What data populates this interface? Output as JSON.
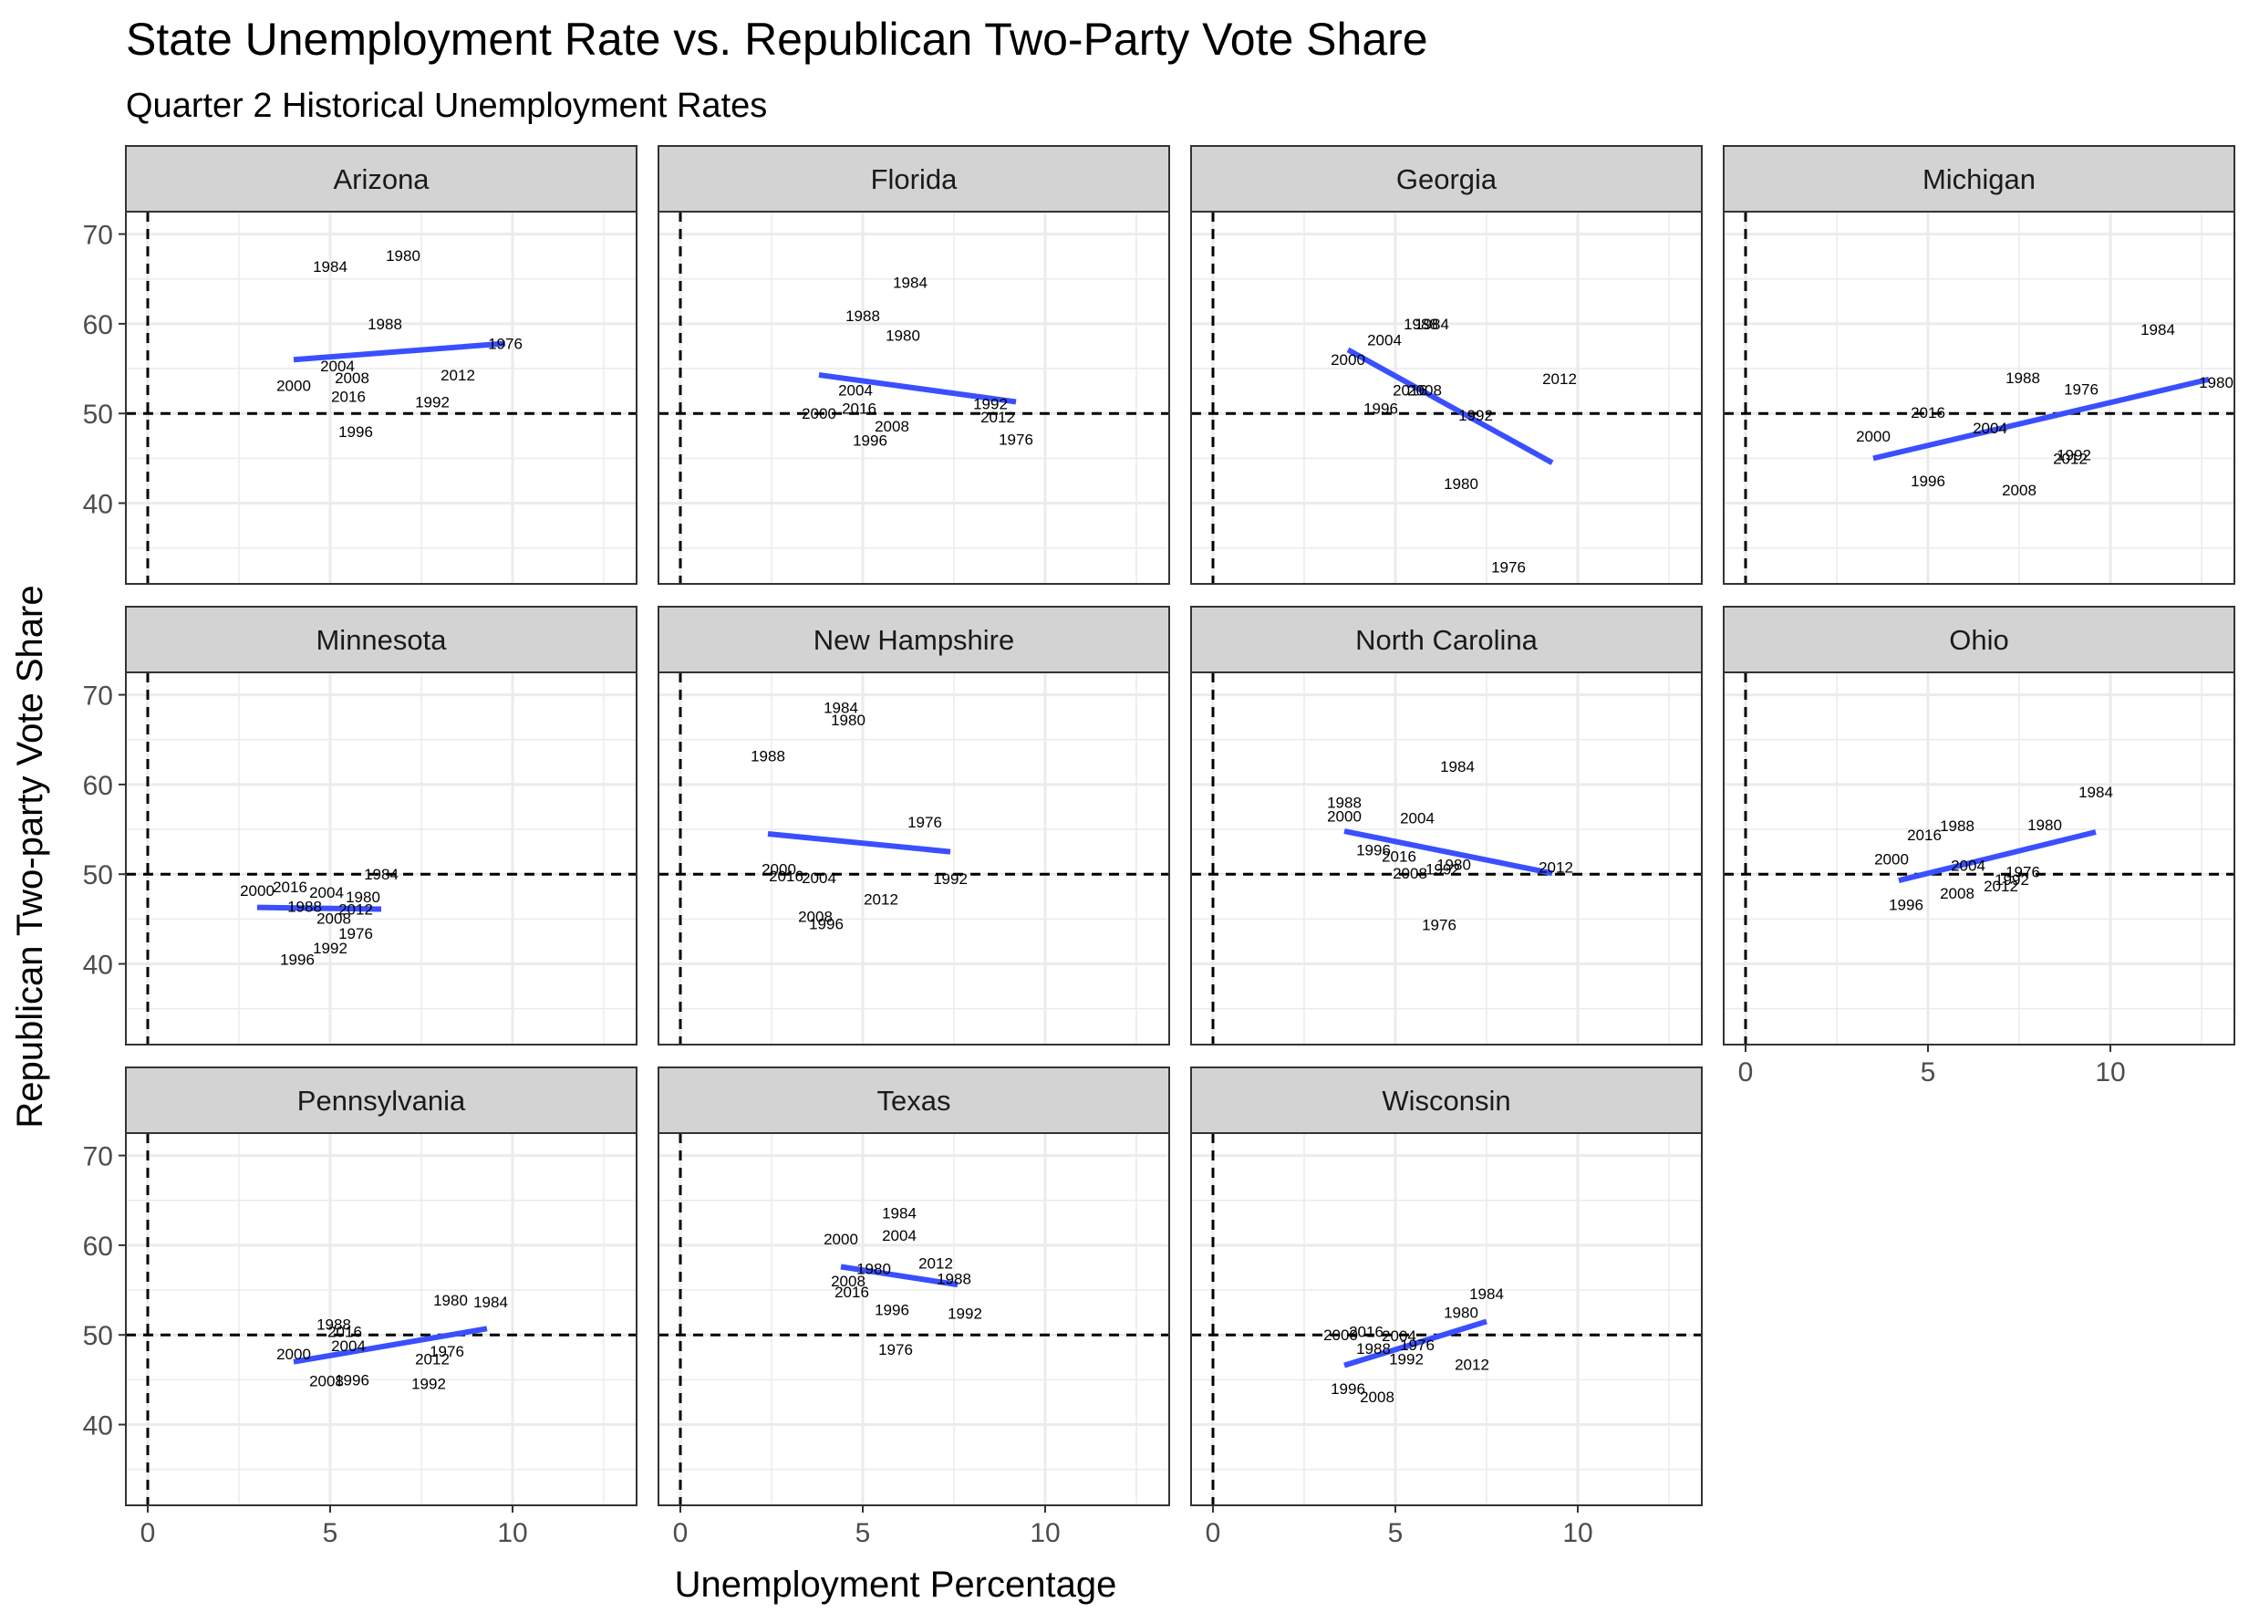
{
  "title": "State Unemployment Rate vs. Republican Two-Party Vote Share",
  "subtitle": "Quarter 2 Historical Unemployment Rates",
  "colors": {
    "strip_bg": "#D3D3D3",
    "grid": "#EBEBEB",
    "fit_line": "#3A4FFF",
    "text": "#000000",
    "axis_text": "#4D4D4D"
  },
  "chart_data": {
    "type": "scatter",
    "mark": "text labels (election year) with linear fit line per state",
    "xlabel": "Unemployment Percentage",
    "ylabel": "Republican Two-party Vote Share",
    "xlim": [
      -0.6,
      13.4
    ],
    "ylim": [
      31,
      72.5
    ],
    "xticks": [
      0,
      5,
      10
    ],
    "yticks": [
      40,
      50,
      60,
      70
    ],
    "reference_lines": {
      "x": 0,
      "y": 50,
      "style": "dashed"
    },
    "grid": true,
    "panels": [
      {
        "name": "Arizona",
        "points": [
          {
            "year": "1984",
            "x": 5.0,
            "y": 66.4
          },
          {
            "year": "1980",
            "x": 7.0,
            "y": 67.6
          },
          {
            "year": "1988",
            "x": 6.5,
            "y": 60.0
          },
          {
            "year": "1976",
            "x": 9.8,
            "y": 57.8
          },
          {
            "year": "2004",
            "x": 5.2,
            "y": 55.3
          },
          {
            "year": "2008",
            "x": 5.6,
            "y": 54.0
          },
          {
            "year": "2012",
            "x": 8.5,
            "y": 54.3
          },
          {
            "year": "2000",
            "x": 4.0,
            "y": 53.1
          },
          {
            "year": "2016",
            "x": 5.5,
            "y": 51.9
          },
          {
            "year": "1992",
            "x": 7.8,
            "y": 51.3
          },
          {
            "year": "1996",
            "x": 5.7,
            "y": 48.0
          }
        ],
        "fit": {
          "x": [
            4.0,
            9.8
          ],
          "y": [
            56.0,
            57.8
          ]
        }
      },
      {
        "name": "Florida",
        "points": [
          {
            "year": "1984",
            "x": 6.3,
            "y": 64.6
          },
          {
            "year": "1988",
            "x": 5.0,
            "y": 60.9
          },
          {
            "year": "1980",
            "x": 6.1,
            "y": 58.7
          },
          {
            "year": "2004",
            "x": 4.8,
            "y": 52.6
          },
          {
            "year": "1992",
            "x": 8.5,
            "y": 51.1
          },
          {
            "year": "2016",
            "x": 4.9,
            "y": 50.6
          },
          {
            "year": "2000",
            "x": 3.8,
            "y": 50.0
          },
          {
            "year": "2012",
            "x": 8.7,
            "y": 49.6
          },
          {
            "year": "2008",
            "x": 5.8,
            "y": 48.6
          },
          {
            "year": "1976",
            "x": 9.2,
            "y": 47.1
          },
          {
            "year": "1996",
            "x": 5.2,
            "y": 47.0
          }
        ],
        "fit": {
          "x": [
            3.8,
            9.2
          ],
          "y": [
            54.3,
            51.3
          ]
        }
      },
      {
        "name": "Georgia",
        "points": [
          {
            "year": "1988",
            "x": 5.7,
            "y": 60.0
          },
          {
            "year": "1984",
            "x": 6.0,
            "y": 60.0
          },
          {
            "year": "2004",
            "x": 4.7,
            "y": 58.2
          },
          {
            "year": "2000",
            "x": 3.7,
            "y": 56.0
          },
          {
            "year": "2012",
            "x": 9.5,
            "y": 53.9
          },
          {
            "year": "2016",
            "x": 5.4,
            "y": 52.6
          },
          {
            "year": "2008",
            "x": 5.8,
            "y": 52.6
          },
          {
            "year": "1996",
            "x": 4.6,
            "y": 50.6
          },
          {
            "year": "1992",
            "x": 7.2,
            "y": 49.8
          },
          {
            "year": "1980",
            "x": 6.8,
            "y": 42.2
          },
          {
            "year": "1976",
            "x": 8.1,
            "y": 32.9
          }
        ],
        "fit": {
          "x": [
            3.7,
            9.3
          ],
          "y": [
            57.1,
            44.5
          ]
        }
      },
      {
        "name": "Michigan",
        "points": [
          {
            "year": "1984",
            "x": 11.3,
            "y": 59.4
          },
          {
            "year": "1988",
            "x": 7.6,
            "y": 54.0
          },
          {
            "year": "1980",
            "x": 12.9,
            "y": 53.5
          },
          {
            "year": "1976",
            "x": 9.2,
            "y": 52.7
          },
          {
            "year": "2016",
            "x": 5.0,
            "y": 50.1
          },
          {
            "year": "2004",
            "x": 6.7,
            "y": 48.4
          },
          {
            "year": "2000",
            "x": 3.5,
            "y": 47.5
          },
          {
            "year": "1992",
            "x": 9.0,
            "y": 45.4
          },
          {
            "year": "2012",
            "x": 8.9,
            "y": 45.0
          },
          {
            "year": "1996",
            "x": 5.0,
            "y": 42.5
          },
          {
            "year": "2008",
            "x": 7.5,
            "y": 41.5
          }
        ],
        "fit": {
          "x": [
            3.5,
            12.7
          ],
          "y": [
            45.0,
            53.8
          ]
        }
      },
      {
        "name": "Minnesota",
        "points": [
          {
            "year": "1984",
            "x": 6.4,
            "y": 50.0
          },
          {
            "year": "2000",
            "x": 3.0,
            "y": 48.2
          },
          {
            "year": "2016",
            "x": 3.9,
            "y": 48.6
          },
          {
            "year": "2004",
            "x": 4.9,
            "y": 48.0
          },
          {
            "year": "1980",
            "x": 5.9,
            "y": 47.5
          },
          {
            "year": "1988",
            "x": 4.3,
            "y": 46.4
          },
          {
            "year": "2012",
            "x": 5.7,
            "y": 46.1
          },
          {
            "year": "2008",
            "x": 5.1,
            "y": 45.1
          },
          {
            "year": "1976",
            "x": 5.7,
            "y": 43.4
          },
          {
            "year": "1992",
            "x": 5.0,
            "y": 41.8
          },
          {
            "year": "1996",
            "x": 4.1,
            "y": 40.5
          }
        ],
        "fit": {
          "x": [
            3.0,
            6.4
          ],
          "y": [
            46.3,
            46.1
          ]
        }
      },
      {
        "name": "New Hampshire",
        "points": [
          {
            "year": "1984",
            "x": 4.4,
            "y": 68.6
          },
          {
            "year": "1980",
            "x": 4.6,
            "y": 67.2
          },
          {
            "year": "1988",
            "x": 2.4,
            "y": 63.2
          },
          {
            "year": "1976",
            "x": 6.7,
            "y": 55.8
          },
          {
            "year": "2000",
            "x": 2.7,
            "y": 50.6
          },
          {
            "year": "2016",
            "x": 2.9,
            "y": 49.8
          },
          {
            "year": "2004",
            "x": 3.8,
            "y": 49.6
          },
          {
            "year": "1992",
            "x": 7.4,
            "y": 49.5
          },
          {
            "year": "2012",
            "x": 5.5,
            "y": 47.2
          },
          {
            "year": "2008",
            "x": 3.7,
            "y": 45.3
          },
          {
            "year": "1996",
            "x": 4.0,
            "y": 44.5
          }
        ],
        "fit": {
          "x": [
            2.4,
            7.4
          ],
          "y": [
            54.5,
            52.5
          ]
        }
      },
      {
        "name": "North Carolina",
        "points": [
          {
            "year": "1984",
            "x": 6.7,
            "y": 62.0
          },
          {
            "year": "1988",
            "x": 3.6,
            "y": 58.0
          },
          {
            "year": "2000",
            "x": 3.6,
            "y": 56.5
          },
          {
            "year": "2004",
            "x": 5.6,
            "y": 56.3
          },
          {
            "year": "1996",
            "x": 4.4,
            "y": 52.7
          },
          {
            "year": "2016",
            "x": 5.1,
            "y": 52.0
          },
          {
            "year": "1980",
            "x": 6.6,
            "y": 51.1
          },
          {
            "year": "1992",
            "x": 6.3,
            "y": 50.6
          },
          {
            "year": "2008",
            "x": 5.4,
            "y": 50.1
          },
          {
            "year": "2012",
            "x": 9.4,
            "y": 50.8
          },
          {
            "year": "1976",
            "x": 6.2,
            "y": 44.4
          }
        ],
        "fit": {
          "x": [
            3.6,
            9.3
          ],
          "y": [
            54.8,
            50.1
          ]
        }
      },
      {
        "name": "Ohio",
        "points": [
          {
            "year": "1984",
            "x": 9.6,
            "y": 59.2
          },
          {
            "year": "1980",
            "x": 8.2,
            "y": 55.5
          },
          {
            "year": "1988",
            "x": 5.8,
            "y": 55.4
          },
          {
            "year": "2016",
            "x": 4.9,
            "y": 54.4
          },
          {
            "year": "2000",
            "x": 4.0,
            "y": 51.7
          },
          {
            "year": "2004",
            "x": 6.1,
            "y": 51.0
          },
          {
            "year": "1976",
            "x": 7.6,
            "y": 50.3
          },
          {
            "year": "1992",
            "x": 7.3,
            "y": 49.4
          },
          {
            "year": "2012",
            "x": 7.0,
            "y": 48.7
          },
          {
            "year": "2008",
            "x": 5.8,
            "y": 47.9
          },
          {
            "year": "1996",
            "x": 4.4,
            "y": 46.6
          }
        ],
        "fit": {
          "x": [
            4.2,
            9.6
          ],
          "y": [
            49.3,
            54.7
          ]
        }
      },
      {
        "name": "Pennsylvania",
        "points": [
          {
            "year": "1980",
            "x": 8.3,
            "y": 53.9
          },
          {
            "year": "1984",
            "x": 9.4,
            "y": 53.7
          },
          {
            "year": "1988",
            "x": 5.1,
            "y": 51.2
          },
          {
            "year": "2016",
            "x": 5.4,
            "y": 50.4
          },
          {
            "year": "2004",
            "x": 5.5,
            "y": 48.8
          },
          {
            "year": "1976",
            "x": 8.2,
            "y": 48.2
          },
          {
            "year": "2000",
            "x": 4.0,
            "y": 47.9
          },
          {
            "year": "2012",
            "x": 7.8,
            "y": 47.3
          },
          {
            "year": "2008",
            "x": 4.9,
            "y": 44.9
          },
          {
            "year": "1996",
            "x": 5.6,
            "y": 45.0
          },
          {
            "year": "1992",
            "x": 7.7,
            "y": 44.6
          }
        ],
        "fit": {
          "x": [
            4.0,
            9.3
          ],
          "y": [
            47.0,
            50.7
          ]
        }
      },
      {
        "name": "Texas",
        "points": [
          {
            "year": "1984",
            "x": 6.0,
            "y": 63.6
          },
          {
            "year": "2004",
            "x": 6.0,
            "y": 61.1
          },
          {
            "year": "2000",
            "x": 4.4,
            "y": 60.7
          },
          {
            "year": "2012",
            "x": 7.0,
            "y": 58.0
          },
          {
            "year": "1980",
            "x": 5.3,
            "y": 57.4
          },
          {
            "year": "1988",
            "x": 7.5,
            "y": 56.3
          },
          {
            "year": "2008",
            "x": 4.6,
            "y": 56.0
          },
          {
            "year": "2016",
            "x": 4.7,
            "y": 54.8
          },
          {
            "year": "1996",
            "x": 5.8,
            "y": 52.8
          },
          {
            "year": "1992",
            "x": 7.8,
            "y": 52.4
          },
          {
            "year": "1976",
            "x": 5.9,
            "y": 48.4
          }
        ],
        "fit": {
          "x": [
            4.4,
            7.6
          ],
          "y": [
            57.6,
            55.6
          ]
        }
      },
      {
        "name": "Wisconsin",
        "points": [
          {
            "year": "1984",
            "x": 7.5,
            "y": 54.6
          },
          {
            "year": "1980",
            "x": 6.8,
            "y": 52.5
          },
          {
            "year": "2016",
            "x": 4.2,
            "y": 50.4
          },
          {
            "year": "2000",
            "x": 3.5,
            "y": 50.0
          },
          {
            "year": "2004",
            "x": 5.1,
            "y": 49.9
          },
          {
            "year": "1976",
            "x": 5.6,
            "y": 48.9
          },
          {
            "year": "1988",
            "x": 4.4,
            "y": 48.5
          },
          {
            "year": "1992",
            "x": 5.3,
            "y": 47.3
          },
          {
            "year": "2012",
            "x": 7.1,
            "y": 46.7
          },
          {
            "year": "1996",
            "x": 3.7,
            "y": 44.0
          },
          {
            "year": "2008",
            "x": 4.5,
            "y": 43.1
          }
        ],
        "fit": {
          "x": [
            3.6,
            7.5
          ],
          "y": [
            46.6,
            51.5
          ]
        }
      }
    ]
  }
}
